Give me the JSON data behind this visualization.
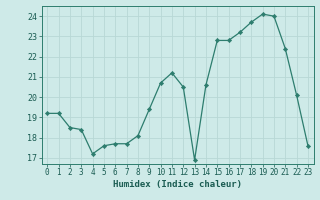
{
  "x": [
    0,
    1,
    2,
    3,
    4,
    5,
    6,
    7,
    8,
    9,
    10,
    11,
    12,
    13,
    14,
    15,
    16,
    17,
    18,
    19,
    20,
    21,
    22,
    23
  ],
  "y": [
    19.2,
    19.2,
    18.5,
    18.4,
    17.2,
    17.6,
    17.7,
    17.7,
    18.1,
    19.4,
    20.7,
    21.2,
    20.5,
    16.9,
    20.6,
    22.8,
    22.8,
    23.2,
    23.7,
    24.1,
    24.0,
    22.4,
    20.1,
    17.6
  ],
  "xlabel": "Humidex (Indice chaleur)",
  "ylim": [
    16.7,
    24.5
  ],
  "xlim": [
    -0.5,
    23.5
  ],
  "yticks": [
    17,
    18,
    19,
    20,
    21,
    22,
    23,
    24
  ],
  "xticks": [
    0,
    1,
    2,
    3,
    4,
    5,
    6,
    7,
    8,
    9,
    10,
    11,
    12,
    13,
    14,
    15,
    16,
    17,
    18,
    19,
    20,
    21,
    22,
    23
  ],
  "line_color": "#2d7d6e",
  "marker_color": "#2d7d6e",
  "bg_color": "#ceeae8",
  "grid_color": "#b8d8d5",
  "axes_color": "#2d7d6e",
  "text_color": "#1a5c52"
}
